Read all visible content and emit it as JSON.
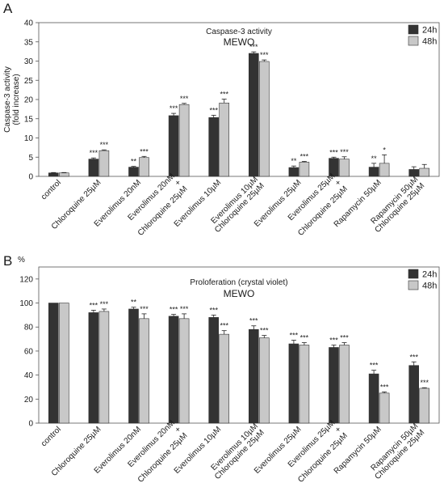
{
  "chart_data": [
    {
      "panel_label": "A",
      "type": "bar",
      "title": "Caspase-3 activity",
      "subtitle": "MEWO",
      "ylabel": "Caspase-3 activity (fold increase)",
      "ylabel_lines": [
        "Caspase-3 activity",
        "(fold increase)"
      ],
      "ylabel_unit": "",
      "ylim": [
        0,
        40
      ],
      "yticks": [
        0,
        5,
        10,
        15,
        20,
        25,
        30,
        35,
        40
      ],
      "legend": "top-right",
      "categories": [
        [
          "control"
        ],
        [
          "Chloroquine 25µM"
        ],
        [
          "Everolimus 20nM"
        ],
        [
          "Everolimus 20nM",
          "+",
          "Chloroquine 25µM"
        ],
        [
          "Everolimus 10µM"
        ],
        [
          "Everolimus 10µM",
          "Chloroquine 25µM"
        ],
        [
          "Everolimus 25µM"
        ],
        [
          "Everolimus 25µM",
          "+",
          "Chloroquine 25µM"
        ],
        [
          "Rapamycin 50µM"
        ],
        [
          "Rapamycin 50µM",
          "Chloroquine 25µM"
        ]
      ],
      "series": [
        {
          "name": "24h",
          "color": "#333333",
          "values": [
            0.9,
            4.5,
            2.4,
            15.8,
            15.3,
            32.0,
            2.3,
            4.7,
            2.4,
            1.8
          ],
          "errors": [
            0.1,
            0.3,
            0.2,
            0.6,
            0.6,
            0.4,
            0.4,
            0.3,
            1.0,
            0.7
          ],
          "significance": [
            "",
            "***",
            "**",
            "***",
            "***",
            "***",
            "**",
            "***",
            "**",
            ""
          ]
        },
        {
          "name": "48h",
          "color": "#c8c8c8",
          "values": [
            0.9,
            6.7,
            4.9,
            18.7,
            19.1,
            29.9,
            3.7,
            4.5,
            3.4,
            2.1
          ],
          "errors": [
            0.1,
            0.2,
            0.3,
            0.3,
            1.0,
            0.4,
            0.2,
            0.6,
            2.2,
            1.0
          ],
          "significance": [
            "",
            "***",
            "***",
            "***",
            "***",
            "***",
            "***",
            "***",
            "*",
            ""
          ]
        }
      ]
    },
    {
      "panel_label": "B",
      "type": "bar",
      "title": "Proloferation (crystal violet)",
      "subtitle": "MEWO",
      "ylabel": "",
      "ylabel_lines": [],
      "ylabel_unit": "%",
      "ylim": [
        0,
        130
      ],
      "yticks": [
        0,
        20,
        40,
        60,
        80,
        100,
        120
      ],
      "legend": "top-right",
      "categories": [
        [
          "control"
        ],
        [
          "Chloroquine 25µM"
        ],
        [
          "Everolimus 20nM"
        ],
        [
          "Everolimus 20nM",
          "+",
          "Chloroquine 25µM"
        ],
        [
          "Everolimus 10µM"
        ],
        [
          "Everolimus 10µM",
          "Chloroquine 25µM"
        ],
        [
          "Everolimus 25µM"
        ],
        [
          "Everolimus 25µM",
          "+",
          "Chloroquine 25µM"
        ],
        [
          "Rapamycin 50µM"
        ],
        [
          "Rapamycin 50µM",
          "Chloroquine 25µM"
        ]
      ],
      "series": [
        {
          "name": "24h",
          "color": "#333333",
          "values": [
            100,
            92,
            95,
            89,
            88,
            78,
            66,
            63,
            41,
            48
          ],
          "errors": [
            0,
            2,
            1.5,
            1.5,
            2,
            3,
            3,
            2,
            3,
            3
          ],
          "significance": [
            "",
            "***",
            "**",
            "***",
            "***",
            "***",
            "***",
            "***",
            "***",
            "***"
          ]
        },
        {
          "name": "48h",
          "color": "#c8c8c8",
          "values": [
            100,
            93,
            87,
            87,
            74,
            71,
            65,
            65,
            25,
            29
          ],
          "errors": [
            0,
            2,
            4,
            4,
            3,
            2,
            2,
            2,
            1,
            0.5
          ],
          "significance": [
            "",
            "***",
            "***",
            "***",
            "***",
            "***",
            "***",
            "***",
            "***",
            "***"
          ]
        }
      ]
    }
  ]
}
